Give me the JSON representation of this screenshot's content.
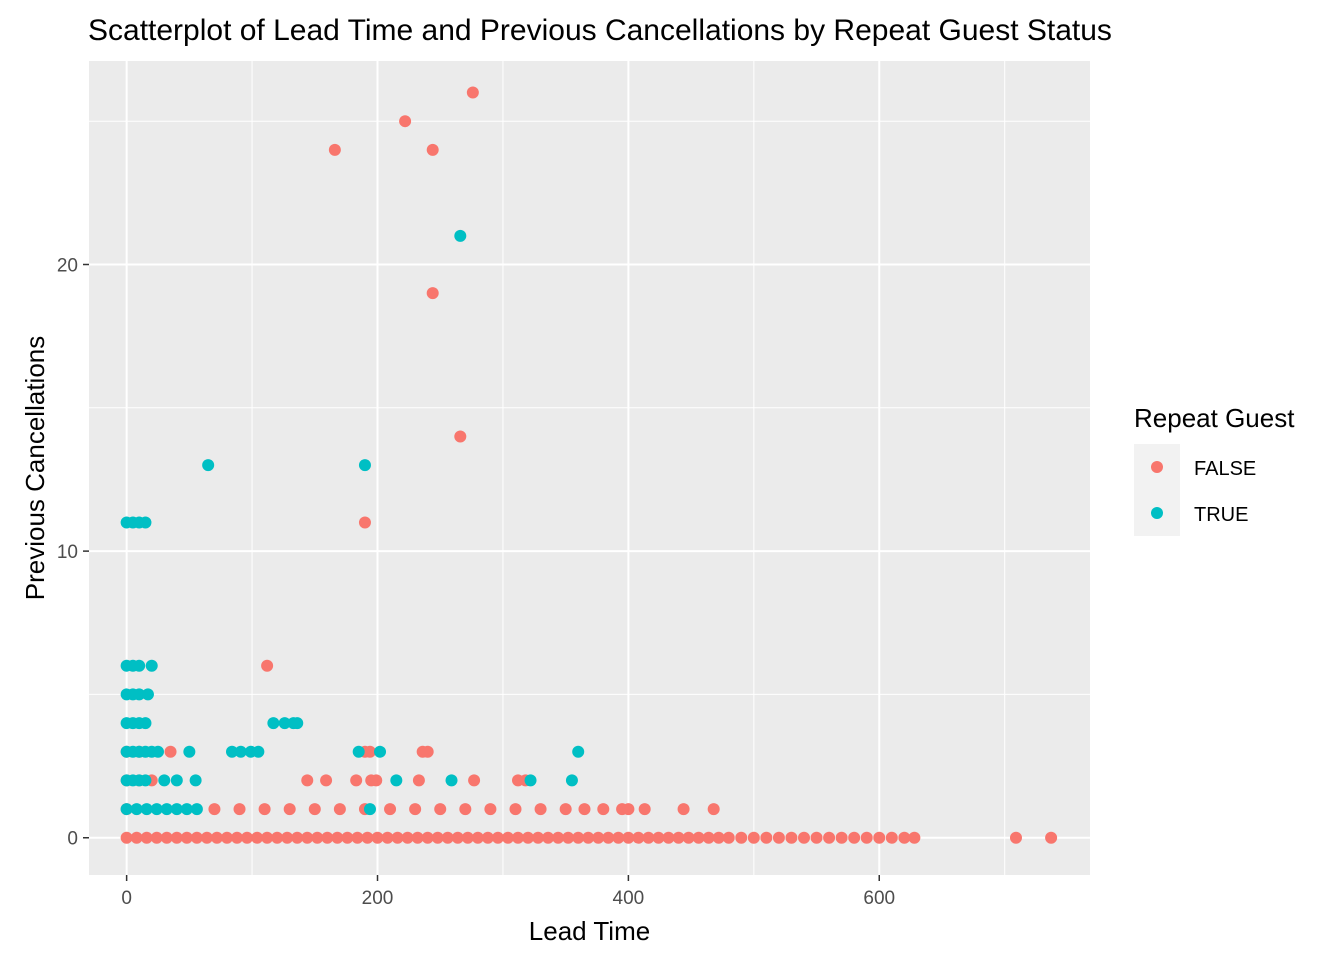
{
  "chart_data": {
    "type": "scatter",
    "title": "Scatterplot of Lead Time and Previous Cancellations by Repeat Guest Status",
    "xlabel": "Lead Time",
    "ylabel": "Previous Cancellations",
    "xlim": [
      -30,
      768
    ],
    "ylim": [
      -1.3,
      27.1
    ],
    "xticks": [
      0,
      200,
      400,
      600
    ],
    "yticks": [
      0,
      10,
      20
    ],
    "grid": true,
    "legend": {
      "title": "Repeat Guest",
      "position": "right"
    },
    "series": [
      {
        "name": "FALSE",
        "color": "#F8766D",
        "points": [
          [
            0,
            0
          ],
          [
            8,
            0
          ],
          [
            16,
            0
          ],
          [
            24,
            0
          ],
          [
            32,
            0
          ],
          [
            40,
            0
          ],
          [
            48,
            0
          ],
          [
            56,
            0
          ],
          [
            64,
            0
          ],
          [
            72,
            0
          ],
          [
            80,
            0
          ],
          [
            88,
            0
          ],
          [
            96,
            0
          ],
          [
            104,
            0
          ],
          [
            112,
            0
          ],
          [
            120,
            0
          ],
          [
            128,
            0
          ],
          [
            136,
            0
          ],
          [
            144,
            0
          ],
          [
            152,
            0
          ],
          [
            160,
            0
          ],
          [
            168,
            0
          ],
          [
            176,
            0
          ],
          [
            184,
            0
          ],
          [
            192,
            0
          ],
          [
            200,
            0
          ],
          [
            208,
            0
          ],
          [
            216,
            0
          ],
          [
            224,
            0
          ],
          [
            232,
            0
          ],
          [
            240,
            0
          ],
          [
            248,
            0
          ],
          [
            256,
            0
          ],
          [
            264,
            0
          ],
          [
            272,
            0
          ],
          [
            280,
            0
          ],
          [
            288,
            0
          ],
          [
            296,
            0
          ],
          [
            304,
            0
          ],
          [
            312,
            0
          ],
          [
            320,
            0
          ],
          [
            328,
            0
          ],
          [
            336,
            0
          ],
          [
            344,
            0
          ],
          [
            352,
            0
          ],
          [
            360,
            0
          ],
          [
            368,
            0
          ],
          [
            376,
            0
          ],
          [
            384,
            0
          ],
          [
            392,
            0
          ],
          [
            400,
            0
          ],
          [
            408,
            0
          ],
          [
            416,
            0
          ],
          [
            424,
            0
          ],
          [
            432,
            0
          ],
          [
            440,
            0
          ],
          [
            448,
            0
          ],
          [
            456,
            0
          ],
          [
            464,
            0
          ],
          [
            472,
            0
          ],
          [
            480,
            0
          ],
          [
            490,
            0
          ],
          [
            500,
            0
          ],
          [
            510,
            0
          ],
          [
            520,
            0
          ],
          [
            530,
            0
          ],
          [
            540,
            0
          ],
          [
            550,
            0
          ],
          [
            560,
            0
          ],
          [
            570,
            0
          ],
          [
            580,
            0
          ],
          [
            590,
            0
          ],
          [
            600,
            0
          ],
          [
            610,
            0
          ],
          [
            620,
            0
          ],
          [
            628,
            0
          ],
          [
            709,
            0
          ],
          [
            737,
            0
          ],
          [
            0,
            1
          ],
          [
            70,
            1
          ],
          [
            90,
            1
          ],
          [
            110,
            1
          ],
          [
            130,
            1
          ],
          [
            150,
            1
          ],
          [
            170,
            1
          ],
          [
            190,
            1
          ],
          [
            210,
            1
          ],
          [
            230,
            1
          ],
          [
            250,
            1
          ],
          [
            270,
            1
          ],
          [
            290,
            1
          ],
          [
            310,
            1
          ],
          [
            330,
            1
          ],
          [
            350,
            1
          ],
          [
            365,
            1
          ],
          [
            380,
            1
          ],
          [
            395,
            1
          ],
          [
            400,
            1
          ],
          [
            413,
            1
          ],
          [
            444,
            1
          ],
          [
            468,
            1
          ],
          [
            0,
            2
          ],
          [
            10,
            2
          ],
          [
            20,
            2
          ],
          [
            144,
            2
          ],
          [
            159,
            2
          ],
          [
            183,
            2
          ],
          [
            195,
            2
          ],
          [
            199,
            2
          ],
          [
            233,
            2
          ],
          [
            277,
            2
          ],
          [
            312,
            2
          ],
          [
            318,
            2
          ],
          [
            0,
            3
          ],
          [
            10,
            3
          ],
          [
            35,
            3
          ],
          [
            190,
            3
          ],
          [
            194,
            3
          ],
          [
            236,
            3
          ],
          [
            240,
            3
          ],
          [
            112,
            6
          ],
          [
            190,
            11
          ],
          [
            266,
            14
          ],
          [
            244,
            19
          ],
          [
            166,
            24
          ],
          [
            244,
            24
          ],
          [
            222,
            25
          ],
          [
            276,
            26
          ]
        ]
      },
      {
        "name": "TRUE",
        "color": "#00BFC4",
        "points": [
          [
            0,
            1
          ],
          [
            8,
            1
          ],
          [
            16,
            1
          ],
          [
            24,
            1
          ],
          [
            32,
            1
          ],
          [
            40,
            1
          ],
          [
            48,
            1
          ],
          [
            56,
            1
          ],
          [
            194,
            1
          ],
          [
            0,
            2
          ],
          [
            5,
            2
          ],
          [
            10,
            2
          ],
          [
            15,
            2
          ],
          [
            30,
            2
          ],
          [
            40,
            2
          ],
          [
            55,
            2
          ],
          [
            215,
            2
          ],
          [
            259,
            2
          ],
          [
            322,
            2
          ],
          [
            355,
            2
          ],
          [
            0,
            3
          ],
          [
            5,
            3
          ],
          [
            10,
            3
          ],
          [
            15,
            3
          ],
          [
            20,
            3
          ],
          [
            25,
            3
          ],
          [
            50,
            3
          ],
          [
            84,
            3
          ],
          [
            91,
            3
          ],
          [
            99,
            3
          ],
          [
            105,
            3
          ],
          [
            185,
            3
          ],
          [
            202,
            3
          ],
          [
            360,
            3
          ],
          [
            0,
            4
          ],
          [
            5,
            4
          ],
          [
            10,
            4
          ],
          [
            15,
            4
          ],
          [
            117,
            4
          ],
          [
            126,
            4
          ],
          [
            133,
            4
          ],
          [
            136,
            4
          ],
          [
            0,
            5
          ],
          [
            5,
            5
          ],
          [
            10,
            5
          ],
          [
            17,
            5
          ],
          [
            0,
            6
          ],
          [
            5,
            6
          ],
          [
            10,
            6
          ],
          [
            20,
            6
          ],
          [
            0,
            11
          ],
          [
            5,
            11
          ],
          [
            10,
            11
          ],
          [
            15,
            11
          ],
          [
            65,
            13
          ],
          [
            190,
            13
          ],
          [
            266,
            21
          ]
        ]
      }
    ]
  }
}
